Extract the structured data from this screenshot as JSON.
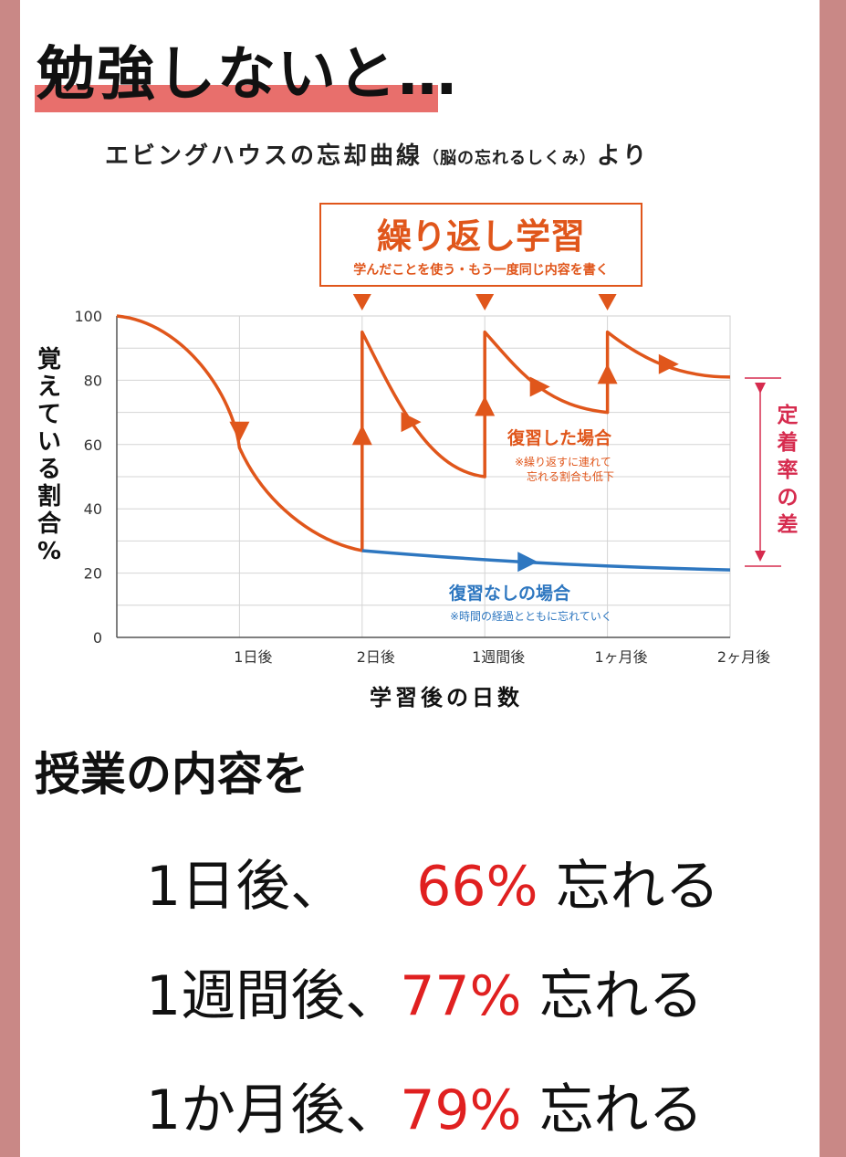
{
  "heading": "勉強しないと…",
  "subtitle": {
    "main": "エビングハウスの忘却曲線",
    "paren": "（脳の忘れるしくみ）",
    "tail": "より"
  },
  "chart_data": {
    "type": "line",
    "ylabel": "覚えている割合%",
    "xlabel": "学習後の日数",
    "ylim": [
      0,
      100
    ],
    "yticks": [
      "100",
      "80",
      "60",
      "40",
      "20",
      "0"
    ],
    "xticks": [
      "1日後",
      "2日後",
      "1週間後",
      "1ヶ月後",
      "2ヶ月後"
    ],
    "colors": {
      "review": "#e0561b",
      "no_review": "#2e77c0",
      "difference": "#d62b4e"
    },
    "callout": {
      "title": "繰り返し学習",
      "subtitle": "学んだことを使う・もう一度同じ内容を書く"
    },
    "series": [
      {
        "name": "復習した場合",
        "note1": "※繰り返すに連れて",
        "note2": "忘れる割合も低下",
        "x": [
          0,
          1,
          2,
          2,
          3,
          3,
          4,
          4,
          5
        ],
        "values": [
          100,
          59,
          27,
          95,
          50,
          95,
          70,
          95,
          81
        ]
      },
      {
        "name": "復習なしの場合",
        "note1": "※時間の経過とともに忘れていく",
        "x": [
          2,
          3,
          4,
          5
        ],
        "values": [
          27,
          24,
          22,
          21
        ]
      }
    ],
    "difference_label": [
      "定",
      "着",
      "率",
      "の",
      "差"
    ]
  },
  "section_title": "授業の内容を",
  "stats": [
    {
      "prefix": "1日後、",
      "pct": "66%",
      "suffix": "忘れる"
    },
    {
      "prefix": "1週間後、",
      "pct": "77%",
      "suffix": "忘れる"
    },
    {
      "prefix": "1か月後、",
      "pct": "79%",
      "suffix": "忘れる"
    }
  ]
}
